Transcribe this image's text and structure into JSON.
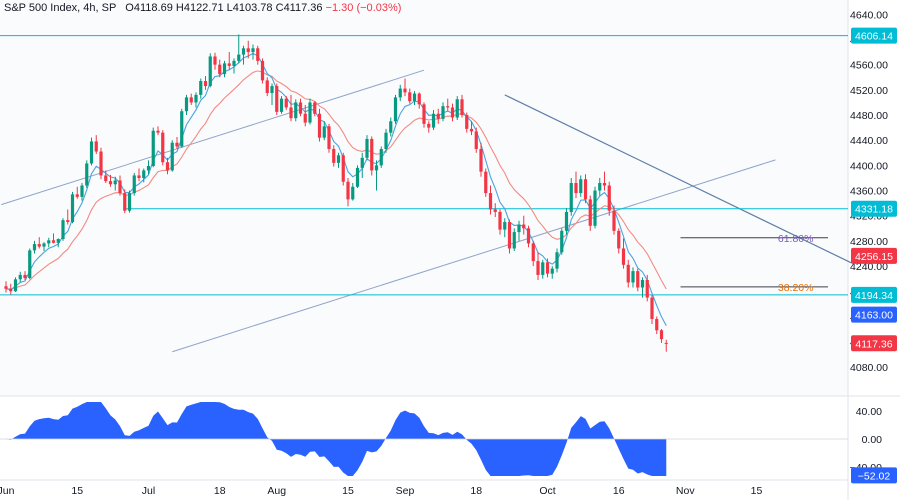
{
  "header": {
    "symbol": "S&P 500 Index, 4h, SP",
    "open_label": "O",
    "open": "4118.69",
    "high_label": "H",
    "high": "4122.71",
    "low_label": "L",
    "low": "4103.78",
    "close_label": "C",
    "close": "4117.36",
    "change": "−1.30 (−0.03%)"
  },
  "chart_data": {
    "type": "candlestick",
    "title": "S&P 500 Index, 4h, SP",
    "price_axis": {
      "range": [
        4040,
        4650
      ],
      "ticks": [
        4640,
        4600,
        4560,
        4520,
        4480,
        4440,
        4400,
        4360,
        4320,
        4280,
        4240,
        4200,
        4160,
        4120,
        4080
      ],
      "tick_labels": [
        "4640.00",
        "4600.00",
        "4560.00",
        "4520.00",
        "4480.00",
        "4440.00",
        "4400.00",
        "4360.00",
        "4320.00",
        "4280.00",
        "4240.00",
        "4200.00",
        "4160.00",
        "4120.00",
        "4080.00"
      ]
    },
    "time_axis": {
      "range": [
        0,
        152
      ],
      "labels": [
        "Jun",
        "15",
        "Jul",
        "18",
        "Aug",
        "15",
        "Sep",
        "18",
        "Oct",
        "16",
        "Nov",
        "15"
      ],
      "positions": [
        0,
        15,
        30,
        45,
        57,
        72,
        84,
        99,
        114,
        129,
        143,
        158
      ]
    },
    "candles": [
      [
        4208,
        4216,
        4198,
        4204
      ],
      [
        4204,
        4212,
        4195,
        4200
      ],
      [
        4200,
        4222,
        4199,
        4219
      ],
      [
        4219,
        4231,
        4214,
        4226
      ],
      [
        4226,
        4232,
        4218,
        4221
      ],
      [
        4221,
        4268,
        4219,
        4265
      ],
      [
        4265,
        4280,
        4260,
        4275
      ],
      [
        4275,
        4286,
        4268,
        4271
      ],
      [
        4271,
        4278,
        4264,
        4276
      ],
      [
        4276,
        4285,
        4270,
        4281
      ],
      [
        4281,
        4292,
        4276,
        4277
      ],
      [
        4277,
        4284,
        4270,
        4283
      ],
      [
        4283,
        4316,
        4280,
        4313
      ],
      [
        4313,
        4330,
        4306,
        4310
      ],
      [
        4310,
        4358,
        4308,
        4354
      ],
      [
        4354,
        4366,
        4347,
        4350
      ],
      [
        4350,
        4372,
        4344,
        4368
      ],
      [
        4368,
        4408,
        4364,
        4403
      ],
      [
        4403,
        4444,
        4400,
        4438
      ],
      [
        4438,
        4448,
        4418,
        4422
      ],
      [
        4422,
        4428,
        4378,
        4384
      ],
      [
        4384,
        4392,
        4372,
        4375
      ],
      [
        4375,
        4385,
        4366,
        4370
      ],
      [
        4370,
        4382,
        4360,
        4376
      ],
      [
        4376,
        4384,
        4352,
        4356
      ],
      [
        4356,
        4362,
        4324,
        4328
      ],
      [
        4328,
        4360,
        4325,
        4356
      ],
      [
        4356,
        4388,
        4352,
        4384
      ],
      [
        4384,
        4395,
        4375,
        4380
      ],
      [
        4380,
        4395,
        4373,
        4392
      ],
      [
        4392,
        4408,
        4386,
        4399
      ],
      [
        4399,
        4460,
        4397,
        4455
      ],
      [
        4455,
        4462,
        4448,
        4452
      ],
      [
        4452,
        4456,
        4400,
        4405
      ],
      [
        4405,
        4412,
        4386,
        4392
      ],
      [
        4392,
        4440,
        4390,
        4436
      ],
      [
        4436,
        4445,
        4426,
        4430
      ],
      [
        4430,
        4490,
        4428,
        4486
      ],
      [
        4486,
        4512,
        4480,
        4508
      ],
      [
        4508,
        4514,
        4496,
        4500
      ],
      [
        4500,
        4516,
        4492,
        4512
      ],
      [
        4512,
        4538,
        4506,
        4534
      ],
      [
        4534,
        4542,
        4520,
        4526
      ],
      [
        4526,
        4578,
        4524,
        4573
      ],
      [
        4573,
        4579,
        4552,
        4560
      ],
      [
        4560,
        4568,
        4540,
        4545
      ],
      [
        4545,
        4566,
        4540,
        4562
      ],
      [
        4562,
        4580,
        4552,
        4558
      ],
      [
        4558,
        4570,
        4546,
        4566
      ],
      [
        4566,
        4608,
        4562,
        4576
      ],
      [
        4576,
        4590,
        4560,
        4586
      ],
      [
        4586,
        4598,
        4570,
        4580
      ],
      [
        4580,
        4592,
        4568,
        4586
      ],
      [
        4586,
        4590,
        4560,
        4566
      ],
      [
        4566,
        4570,
        4530,
        4535
      ],
      [
        4535,
        4540,
        4510,
        4515
      ],
      [
        4515,
        4530,
        4496,
        4526
      ],
      [
        4526,
        4530,
        4480,
        4485
      ],
      [
        4485,
        4510,
        4482,
        4506
      ],
      [
        4506,
        4510,
        4488,
        4492
      ],
      [
        4492,
        4512,
        4470,
        4475
      ],
      [
        4475,
        4505,
        4470,
        4500
      ],
      [
        4500,
        4506,
        4478,
        4482
      ],
      [
        4482,
        4496,
        4462,
        4468
      ],
      [
        4468,
        4506,
        4465,
        4500
      ],
      [
        4500,
        4502,
        4478,
        4482
      ],
      [
        4482,
        4490,
        4438,
        4444
      ],
      [
        4444,
        4470,
        4440,
        4462
      ],
      [
        4462,
        4466,
        4420,
        4426
      ],
      [
        4426,
        4432,
        4398,
        4404
      ],
      [
        4404,
        4420,
        4396,
        4416
      ],
      [
        4416,
        4420,
        4368,
        4374
      ],
      [
        4374,
        4380,
        4335,
        4346
      ],
      [
        4346,
        4372,
        4344,
        4366
      ],
      [
        4366,
        4400,
        4364,
        4396
      ],
      [
        4396,
        4420,
        4380,
        4412
      ],
      [
        4412,
        4448,
        4408,
        4442
      ],
      [
        4442,
        4446,
        4384,
        4392
      ],
      [
        4392,
        4408,
        4360,
        4400
      ],
      [
        4400,
        4430,
        4396,
        4426
      ],
      [
        4426,
        4458,
        4420,
        4452
      ],
      [
        4452,
        4476,
        4446,
        4470
      ],
      [
        4470,
        4512,
        4466,
        4508
      ],
      [
        4508,
        4528,
        4502,
        4522
      ],
      [
        4522,
        4538,
        4510,
        4516
      ],
      [
        4516,
        4522,
        4498,
        4502
      ],
      [
        4502,
        4518,
        4496,
        4514
      ],
      [
        4514,
        4516,
        4490,
        4497
      ],
      [
        4497,
        4500,
        4460,
        4466
      ],
      [
        4466,
        4470,
        4452,
        4460
      ],
      [
        4460,
        4488,
        4456,
        4482
      ],
      [
        4482,
        4490,
        4466,
        4474
      ],
      [
        4474,
        4500,
        4470,
        4494
      ],
      [
        4494,
        4506,
        4486,
        4492
      ],
      [
        4492,
        4498,
        4470,
        4476
      ],
      [
        4476,
        4510,
        4472,
        4505
      ],
      [
        4505,
        4512,
        4476,
        4480
      ],
      [
        4480,
        4484,
        4452,
        4458
      ],
      [
        4458,
        4470,
        4448,
        4454
      ],
      [
        4454,
        4460,
        4420,
        4426
      ],
      [
        4426,
        4436,
        4382,
        4390
      ],
      [
        4390,
        4395,
        4350,
        4356
      ],
      [
        4356,
        4368,
        4322,
        4330
      ],
      [
        4330,
        4340,
        4318,
        4326
      ],
      [
        4326,
        4330,
        4290,
        4298
      ],
      [
        4298,
        4316,
        4286,
        4310
      ],
      [
        4310,
        4314,
        4260,
        4268
      ],
      [
        4268,
        4300,
        4264,
        4294
      ],
      [
        4294,
        4312,
        4280,
        4306
      ],
      [
        4306,
        4320,
        4290,
        4300
      ],
      [
        4300,
        4304,
        4270,
        4276
      ],
      [
        4276,
        4280,
        4240,
        4248
      ],
      [
        4248,
        4262,
        4218,
        4226
      ],
      [
        4226,
        4250,
        4220,
        4246
      ],
      [
        4246,
        4252,
        4222,
        4228
      ],
      [
        4228,
        4240,
        4220,
        4236
      ],
      [
        4236,
        4268,
        4230,
        4262
      ],
      [
        4262,
        4300,
        4258,
        4296
      ],
      [
        4296,
        4332,
        4290,
        4326
      ],
      [
        4326,
        4380,
        4320,
        4372
      ],
      [
        4372,
        4390,
        4348,
        4356
      ],
      [
        4356,
        4384,
        4350,
        4378
      ],
      [
        4378,
        4386,
        4340,
        4346
      ],
      [
        4346,
        4352,
        4296,
        4304
      ],
      [
        4304,
        4366,
        4300,
        4360
      ],
      [
        4360,
        4380,
        4352,
        4372
      ],
      [
        4372,
        4390,
        4360,
        4368
      ],
      [
        4368,
        4374,
        4320,
        4328
      ],
      [
        4328,
        4336,
        4290,
        4296
      ],
      [
        4296,
        4300,
        4260,
        4268
      ],
      [
        4268,
        4284,
        4236,
        4242
      ],
      [
        4242,
        4250,
        4206,
        4214
      ],
      [
        4214,
        4238,
        4206,
        4232
      ],
      [
        4232,
        4236,
        4200,
        4206
      ],
      [
        4206,
        4222,
        4190,
        4218
      ],
      [
        4218,
        4226,
        4184,
        4190
      ],
      [
        4190,
        4194,
        4148,
        4156
      ],
      [
        4156,
        4160,
        4132,
        4138
      ],
      [
        4138,
        4140,
        4118,
        4124
      ],
      [
        4118,
        4123,
        4104,
        4117
      ]
    ],
    "ema_fast_label": "EMA fast",
    "ema_slow_label": "EMA slow",
    "horizontal_levels": [
      {
        "price": 4606.14,
        "label": "4606.14",
        "color": "#00bcd4"
      },
      {
        "price": 4331.18,
        "label": "4331.18",
        "color": "#00bcd4"
      },
      {
        "price": 4194.34,
        "label": "4194.34",
        "color": "#00bcd4"
      }
    ],
    "fib_levels": [
      {
        "price": 4285,
        "label": "61.80%",
        "color": "#7e57c2"
      },
      {
        "price": 4207,
        "label": "38.20%",
        "color": "#ef6c00"
      }
    ],
    "price_badges": [
      {
        "price": 4256.15,
        "label": "4256.15",
        "color": "#f23645"
      },
      {
        "price": 4163.0,
        "label": "4163.00",
        "color": "#2962ff"
      },
      {
        "price": 4117.36,
        "label": "4117.36",
        "color": "#f23645"
      }
    ],
    "oscillator": {
      "ticks": [
        40,
        0,
        -40
      ],
      "tick_labels": [
        "40.00",
        "0.00",
        "−40.00"
      ],
      "last_value": -52.02,
      "last_label": "−52.02",
      "color": "#2962ff"
    },
    "colors": {
      "up": "#089981",
      "down": "#f23645",
      "ema_fast": "#4aa3df",
      "ema_slow": "#f28b82",
      "trend": "#5b7fa6",
      "channel": "#90a4c8"
    }
  }
}
